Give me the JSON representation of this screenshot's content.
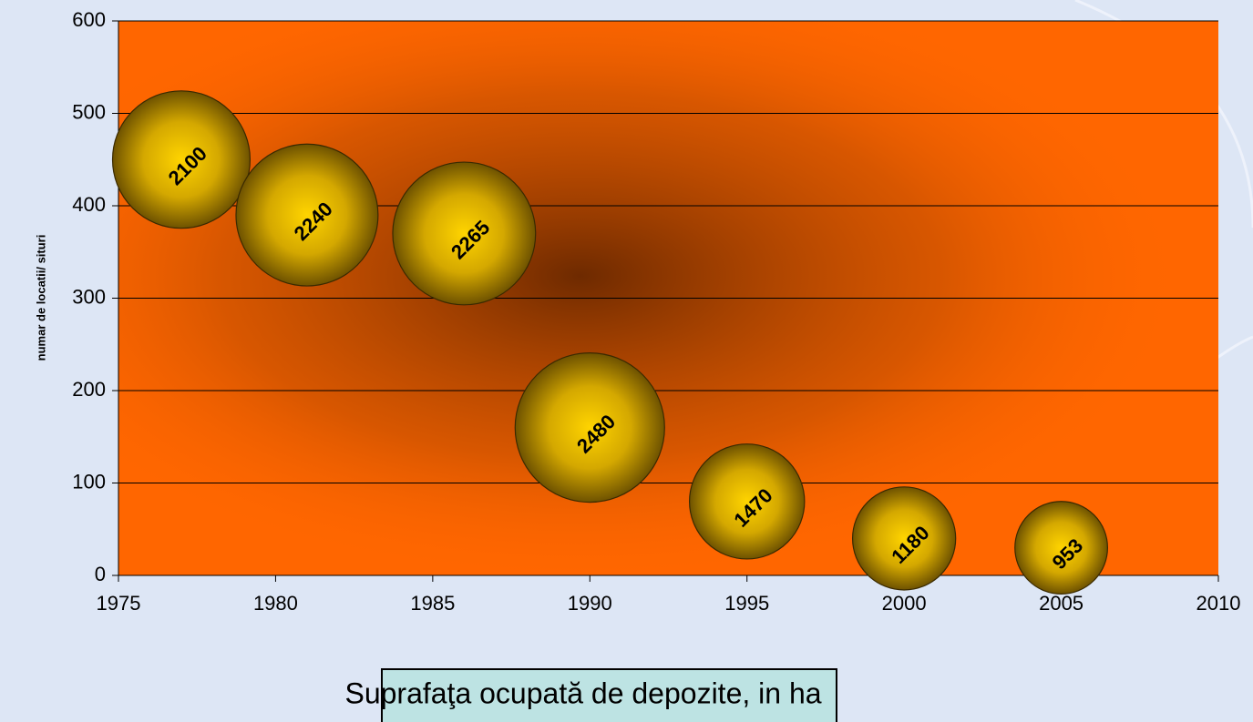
{
  "chart_data": {
    "type": "bubble",
    "y_label": "numar de locatii/ situri",
    "x_label": "Suprafaţa ocupată de depozite, in ha",
    "x": [
      1977,
      1981,
      1986,
      1990,
      1995,
      2000,
      2005
    ],
    "series": [
      {
        "color": "#d4a800",
        "values": [
          450,
          390,
          370,
          160,
          80,
          40,
          30
        ],
        "sizes": [
          2100,
          2240,
          2265,
          2480,
          1470,
          1180,
          953
        ]
      }
    ],
    "xlim": [
      1975,
      2010
    ],
    "xticks": [
      1975,
      1980,
      1985,
      1990,
      1995,
      2000,
      2005,
      2010
    ],
    "ylim": [
      0,
      600
    ],
    "yticks": [
      0,
      100,
      200,
      300,
      400,
      500,
      600
    ],
    "grid": true,
    "plot_color": "#ff6600"
  }
}
